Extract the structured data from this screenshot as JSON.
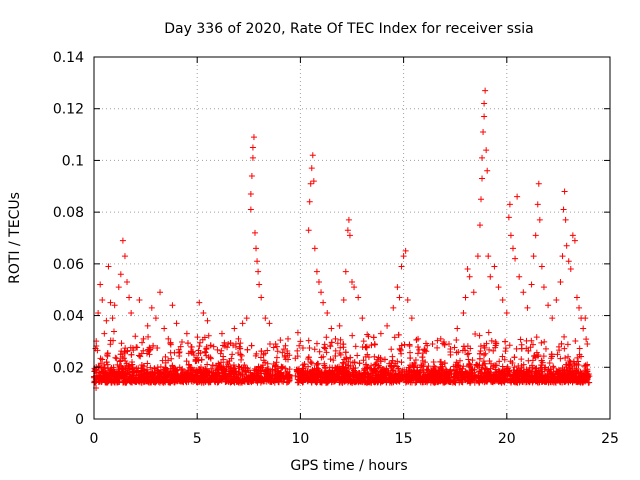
{
  "chart_data": {
    "type": "scatter",
    "title": "Day 336 of 2020, Rate Of TEC Index for receiver ssia",
    "xlabel": "GPS time / hours",
    "ylabel": "ROTI / TECUs",
    "xlim": [
      0,
      25
    ],
    "ylim": [
      0,
      0.14
    ],
    "xticks": [
      0,
      5,
      10,
      15,
      20,
      25
    ],
    "xtick_labels": [
      "0",
      "5",
      "10",
      "15",
      "20",
      "25"
    ],
    "yticks": [
      0,
      0.02,
      0.04,
      0.06,
      0.08,
      0.1,
      0.12,
      0.14
    ],
    "ytick_labels": [
      "0",
      "0.02",
      "0.04",
      "0.06",
      "0.08",
      "0.1",
      "0.12",
      "0.14"
    ],
    "grid": true,
    "marker": "plus",
    "color": "#ff0000",
    "series": [
      {
        "name": "",
        "points": [
          [
            0.1,
            0.012
          ],
          [
            0.2,
            0.041
          ],
          [
            0.3,
            0.052
          ],
          [
            0.4,
            0.046
          ],
          [
            0.5,
            0.033
          ],
          [
            0.6,
            0.038
          ],
          [
            0.7,
            0.059
          ],
          [
            0.8,
            0.045
          ],
          [
            0.9,
            0.039
          ],
          [
            1.0,
            0.044
          ],
          [
            1.2,
            0.051
          ],
          [
            1.3,
            0.056
          ],
          [
            1.4,
            0.069
          ],
          [
            1.5,
            0.063
          ],
          [
            1.6,
            0.053
          ],
          [
            1.7,
            0.047
          ],
          [
            1.8,
            0.041
          ],
          [
            2.0,
            0.032
          ],
          [
            2.2,
            0.046
          ],
          [
            2.4,
            0.031
          ],
          [
            2.6,
            0.036
          ],
          [
            2.8,
            0.043
          ],
          [
            3.0,
            0.039
          ],
          [
            3.2,
            0.049
          ],
          [
            3.4,
            0.035
          ],
          [
            3.6,
            0.031
          ],
          [
            3.8,
            0.044
          ],
          [
            4.0,
            0.037
          ],
          [
            4.2,
            0.028
          ],
          [
            4.5,
            0.033
          ],
          [
            4.8,
            0.026
          ],
          [
            5.1,
            0.045
          ],
          [
            5.3,
            0.041
          ],
          [
            5.5,
            0.038
          ],
          [
            5.8,
            0.028
          ],
          [
            6.2,
            0.033
          ],
          [
            6.5,
            0.029
          ],
          [
            6.8,
            0.035
          ],
          [
            7.0,
            0.031
          ],
          [
            7.2,
            0.037
          ],
          [
            7.4,
            0.039
          ],
          [
            7.6,
            0.081
          ],
          [
            7.6,
            0.087
          ],
          [
            7.65,
            0.094
          ],
          [
            7.7,
            0.101
          ],
          [
            7.7,
            0.105
          ],
          [
            7.75,
            0.109
          ],
          [
            7.8,
            0.072
          ],
          [
            7.85,
            0.066
          ],
          [
            7.9,
            0.061
          ],
          [
            7.95,
            0.057
          ],
          [
            8.0,
            0.052
          ],
          [
            8.1,
            0.047
          ],
          [
            8.3,
            0.039
          ],
          [
            8.5,
            0.037
          ],
          [
            8.8,
            0.029
          ],
          [
            9.2,
            0.027
          ],
          [
            9.4,
            0.031
          ],
          [
            10.4,
            0.073
          ],
          [
            10.45,
            0.084
          ],
          [
            10.5,
            0.091
          ],
          [
            10.55,
            0.097
          ],
          [
            10.6,
            0.102
          ],
          [
            10.65,
            0.092
          ],
          [
            10.7,
            0.066
          ],
          [
            10.8,
            0.057
          ],
          [
            10.9,
            0.053
          ],
          [
            11.0,
            0.049
          ],
          [
            11.1,
            0.045
          ],
          [
            11.3,
            0.041
          ],
          [
            11.5,
            0.035
          ],
          [
            11.7,
            0.031
          ],
          [
            11.9,
            0.036
          ],
          [
            12.1,
            0.046
          ],
          [
            12.2,
            0.057
          ],
          [
            12.3,
            0.073
          ],
          [
            12.35,
            0.077
          ],
          [
            12.4,
            0.071
          ],
          [
            12.5,
            0.053
          ],
          [
            12.6,
            0.051
          ],
          [
            12.8,
            0.047
          ],
          [
            13.0,
            0.039
          ],
          [
            13.3,
            0.032
          ],
          [
            13.6,
            0.029
          ],
          [
            13.9,
            0.033
          ],
          [
            14.2,
            0.036
          ],
          [
            14.5,
            0.043
          ],
          [
            14.7,
            0.051
          ],
          [
            14.8,
            0.047
          ],
          [
            14.9,
            0.059
          ],
          [
            15.0,
            0.063
          ],
          [
            15.1,
            0.065
          ],
          [
            15.2,
            0.046
          ],
          [
            15.4,
            0.039
          ],
          [
            15.7,
            0.031
          ],
          [
            16.0,
            0.027
          ],
          [
            16.4,
            0.029
          ],
          [
            16.8,
            0.031
          ],
          [
            17.2,
            0.029
          ],
          [
            17.6,
            0.035
          ],
          [
            17.9,
            0.041
          ],
          [
            18.0,
            0.047
          ],
          [
            18.1,
            0.058
          ],
          [
            18.2,
            0.055
          ],
          [
            18.4,
            0.049
          ],
          [
            18.6,
            0.063
          ],
          [
            18.7,
            0.075
          ],
          [
            18.75,
            0.085
          ],
          [
            18.8,
            0.093
          ],
          [
            18.8,
            0.101
          ],
          [
            18.85,
            0.111
          ],
          [
            18.9,
            0.117
          ],
          [
            18.9,
            0.122
          ],
          [
            18.95,
            0.127
          ],
          [
            19.0,
            0.104
          ],
          [
            19.05,
            0.096
          ],
          [
            19.1,
            0.063
          ],
          [
            19.2,
            0.055
          ],
          [
            19.4,
            0.059
          ],
          [
            19.6,
            0.051
          ],
          [
            19.8,
            0.046
          ],
          [
            20.0,
            0.041
          ],
          [
            20.1,
            0.078
          ],
          [
            20.15,
            0.083
          ],
          [
            20.2,
            0.071
          ],
          [
            20.3,
            0.066
          ],
          [
            20.4,
            0.062
          ],
          [
            20.5,
            0.086
          ],
          [
            20.6,
            0.055
          ],
          [
            20.8,
            0.049
          ],
          [
            21.0,
            0.043
          ],
          [
            21.2,
            0.052
          ],
          [
            21.3,
            0.063
          ],
          [
            21.4,
            0.071
          ],
          [
            21.5,
            0.083
          ],
          [
            21.55,
            0.091
          ],
          [
            21.6,
            0.077
          ],
          [
            21.7,
            0.059
          ],
          [
            21.8,
            0.051
          ],
          [
            22.0,
            0.044
          ],
          [
            22.2,
            0.039
          ],
          [
            22.4,
            0.046
          ],
          [
            22.6,
            0.053
          ],
          [
            22.7,
            0.063
          ],
          [
            22.75,
            0.081
          ],
          [
            22.8,
            0.088
          ],
          [
            22.85,
            0.077
          ],
          [
            22.9,
            0.067
          ],
          [
            23.0,
            0.061
          ],
          [
            23.1,
            0.058
          ],
          [
            23.2,
            0.071
          ],
          [
            23.3,
            0.069
          ],
          [
            23.4,
            0.047
          ],
          [
            23.5,
            0.043
          ],
          [
            23.6,
            0.039
          ],
          [
            23.7,
            0.035
          ],
          [
            23.8,
            0.039
          ],
          [
            23.9,
            0.029
          ]
        ]
      }
    ]
  }
}
